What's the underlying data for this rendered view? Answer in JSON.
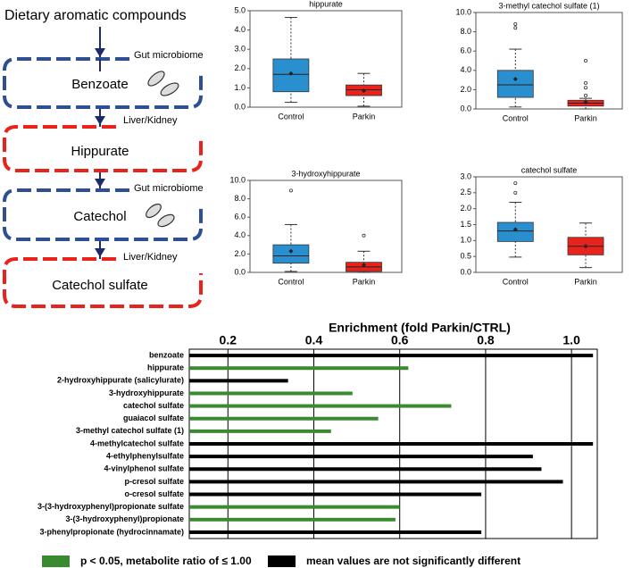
{
  "diagram": {
    "start": "Dietary aromatic compounds",
    "nodes": [
      "Benzoate",
      "Hippurate",
      "Catechol",
      "Catechol sulfate"
    ],
    "steps": [
      "Gut microbiome",
      "Liver/Kidney",
      "Gut microbiome",
      "Liver/Kidney"
    ]
  },
  "chart_data": [
    {
      "type": "box",
      "title": "hippurate",
      "ylim": [
        0,
        5
      ],
      "yticks": [
        {
          "value": 0,
          "label": "0.0"
        },
        {
          "value": 1,
          "label": "1.0"
        },
        {
          "value": 2,
          "label": "2.0"
        },
        {
          "value": 3,
          "label": "3.0"
        },
        {
          "value": 4,
          "label": "4.0"
        },
        {
          "value": 5,
          "label": "5.0"
        }
      ],
      "boxes": [
        {
          "name": "Control",
          "color": "#2a8fcf",
          "whisker_low": 0.25,
          "q1": 0.8,
          "median": 1.7,
          "q3": 2.5,
          "whisker_high": 4.65,
          "mean": 1.75,
          "outliers": []
        },
        {
          "name": "Parkin",
          "color": "#e8231b",
          "whisker_low": 0.05,
          "q1": 0.6,
          "median": 0.9,
          "q3": 1.15,
          "whisker_high": 1.75,
          "mean": 0.85,
          "outliers": []
        }
      ]
    },
    {
      "type": "box",
      "title": "3-methyl catechol sulfate (1)",
      "ylim": [
        0,
        10
      ],
      "yticks": [
        {
          "value": 0,
          "label": "0.0"
        },
        {
          "value": 2,
          "label": "2.0"
        },
        {
          "value": 4,
          "label": "4.0"
        },
        {
          "value": 6,
          "label": "6.0"
        },
        {
          "value": 8,
          "label": "8.0"
        },
        {
          "value": 10,
          "label": "10.0"
        }
      ],
      "boxes": [
        {
          "name": "Control",
          "color": "#2a8fcf",
          "whisker_low": 0.2,
          "q1": 1.2,
          "median": 2.5,
          "q3": 4.0,
          "whisker_high": 6.2,
          "mean": 3.1,
          "outliers": [
            8.4,
            8.8
          ]
        },
        {
          "name": "Parkin",
          "color": "#e8231b",
          "whisker_low": 0,
          "q1": 0.3,
          "median": 0.6,
          "q3": 0.9,
          "whisker_high": 1.1,
          "mean": 0.7,
          "outliers": [
            1.4,
            2.2,
            2.7,
            5.0
          ]
        }
      ]
    },
    {
      "type": "box",
      "title": "3-hydroxyhippurate",
      "ylim": [
        0,
        10
      ],
      "yticks": [
        {
          "value": 0,
          "label": "0.0"
        },
        {
          "value": 2,
          "label": "2.0"
        },
        {
          "value": 4,
          "label": "4.0"
        },
        {
          "value": 6,
          "label": "6.0"
        },
        {
          "value": 8,
          "label": "8.0"
        },
        {
          "value": 10,
          "label": "10.0"
        }
      ],
      "boxes": [
        {
          "name": "Control",
          "color": "#2a8fcf",
          "whisker_low": 0.1,
          "q1": 1.0,
          "median": 1.8,
          "q3": 3.0,
          "whisker_high": 5.2,
          "mean": 2.3,
          "outliers": [
            8.9
          ]
        },
        {
          "name": "Parkin",
          "color": "#e8231b",
          "whisker_low": 0,
          "q1": 0.1,
          "median": 0.6,
          "q3": 1.1,
          "whisker_high": 2.3,
          "mean": 0.8,
          "outliers": [
            4.0
          ]
        }
      ]
    },
    {
      "type": "box",
      "title": "catechol sulfate",
      "ylim": [
        0,
        3
      ],
      "yticks": [
        {
          "value": 0,
          "label": "0.0"
        },
        0.5,
        {
          "value": 1,
          "label": "1.0"
        },
        1.5,
        {
          "value": 2,
          "label": "2.0"
        },
        2.5,
        {
          "value": 3,
          "label": "3.0"
        }
      ],
      "boxes": [
        {
          "name": "Control",
          "color": "#2a8fcf",
          "whisker_low": 0.48,
          "q1": 0.97,
          "median": 1.3,
          "q3": 1.57,
          "whisker_high": 2.2,
          "mean": 1.35,
          "outliers": [
            2.5,
            2.8
          ]
        },
        {
          "name": "Parkin",
          "color": "#e8231b",
          "whisker_low": 0.15,
          "q1": 0.55,
          "median": 0.82,
          "q3": 1.1,
          "whisker_high": 1.55,
          "mean": 0.82,
          "outliers": []
        }
      ]
    },
    {
      "type": "hbar",
      "title": "Enrichment (fold Parkin/CTRL)",
      "xlim": [
        0.11,
        1.06
      ],
      "xticks": [
        0.2,
        0.4,
        0.6,
        0.8,
        {
          "value": 1,
          "label": "1.0"
        }
      ],
      "grid": true,
      "categories": [
        "benzoate",
        "hippurate",
        "2-hydroxyhippurate (salicylurate)",
        "3-hydroxyhippurate",
        "catechol sulfate",
        "guaiacol sulfate",
        "3-methyl catechol sulfate (1)",
        "4-methylcatechol sulfate",
        "4-ethylphenylsulfate",
        "4-vinylphenol sulfate",
        "p-cresol sulfate",
        "o-cresol sulfate",
        "3-(3-hydroxyphenyl)propionate sulfate",
        "3-(3-hydroxyphenyl)propionate",
        "3-phenylpropionate (hydrocinnamate)"
      ],
      "values": [
        1.05,
        0.62,
        0.34,
        0.49,
        0.72,
        0.55,
        0.44,
        1.05,
        0.91,
        0.93,
        0.98,
        0.79,
        0.6,
        0.59,
        0.79
      ],
      "colors": [
        "#000000",
        "#3a8a2f",
        "#000000",
        "#3a8a2f",
        "#3a8a2f",
        "#3a8a2f",
        "#3a8a2f",
        "#000000",
        "#000000",
        "#000000",
        "#000000",
        "#000000",
        "#3a8a2f",
        "#3a8a2f",
        "#000000"
      ],
      "legend": [
        {
          "label": "p < 0.05, metabolite ratio of ≤ 1.00",
          "color": "#3a8a2f"
        },
        {
          "label": "mean values are not significantly different",
          "color": "#000000"
        }
      ]
    }
  ]
}
